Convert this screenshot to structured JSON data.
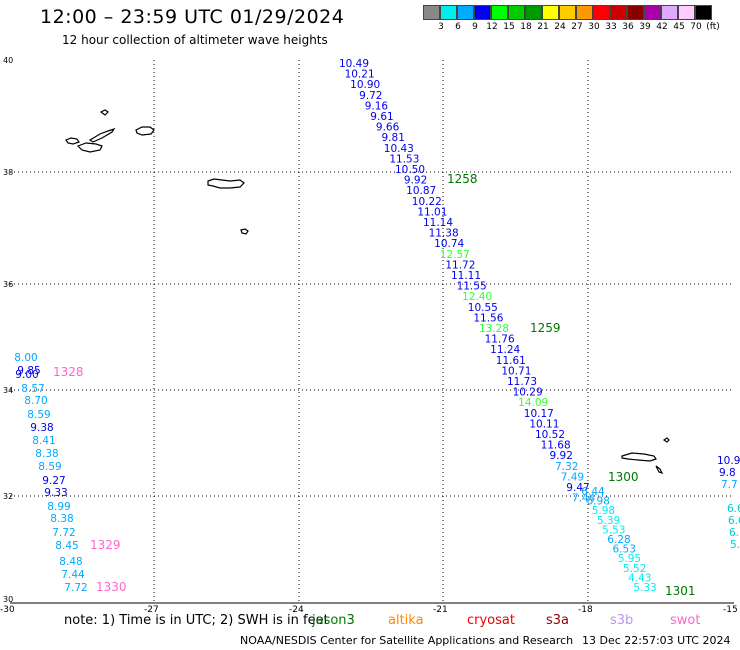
{
  "header": {
    "title": "12:00 – 23:59 UTC 01/29/2024",
    "subtitle": "12 hour collection of altimeter wave heights"
  },
  "legend": {
    "colors": [
      "#888888",
      "#00eeee",
      "#00aaff",
      "#0000ee",
      "#00ff00",
      "#00cc00",
      "#009900",
      "#ffff00",
      "#ffcc00",
      "#ff9900",
      "#ff0000",
      "#cc0000",
      "#880000",
      "#aa00aa",
      "#ddaaff",
      "#ffccff",
      "#000000"
    ],
    "labels": [
      "3",
      "6",
      "9",
      "12",
      "15",
      "18",
      "21",
      "24",
      "27",
      "30",
      "33",
      "36",
      "39",
      "42",
      "45",
      "70"
    ],
    "unit": "(ft)"
  },
  "axes": {
    "lat_labels": [
      "40",
      "38",
      "36",
      "34",
      "32",
      "30"
    ],
    "lon_labels": [
      "-30",
      "-27",
      "-24",
      "-21",
      "-18",
      "-15"
    ]
  },
  "tracks": {
    "pass_a": [
      "10.49",
      "10.21",
      "10.90",
      "9.72",
      "9.16",
      "9.61",
      "9.66",
      "9.81",
      "10.43",
      "11.53",
      "10.50",
      "9.92",
      "10.87",
      "10.22",
      "11.01",
      "11.14",
      "11.38",
      "10.74",
      "12.57",
      "11.72",
      "11.11",
      "11.55",
      "12.40",
      "10.55",
      "11.56",
      "13.28",
      "11.76",
      "11.24",
      "11.61",
      "10.71",
      "11.73",
      "10.29",
      "14.09",
      "10.17",
      "10.11",
      "10.52",
      "11.68",
      "9.92",
      "7.32",
      "7.49",
      "9.47",
      "7.44"
    ],
    "pass_b": [
      "6.44",
      "6.98",
      "5.98",
      "5.39",
      "5.53",
      "6.28",
      "6.53",
      "5.95",
      "5.52",
      "4.43",
      "5.33"
    ],
    "pass_c": [
      "8.00",
      "9.85",
      "9.00",
      "8.57",
      "8.70",
      "8.59",
      "9.38",
      "8.41",
      "8.38",
      "8.59",
      "9.27",
      "9.33",
      "8.99",
      "8.38",
      "7.72",
      "8.45",
      "8.48",
      "7.44",
      "7.72"
    ],
    "pass_d": [
      "10.9",
      "9.8",
      "7.7"
    ],
    "pass_e": [
      "6.6",
      "6.6",
      "6.",
      "5."
    ]
  },
  "times": {
    "t1258": "1258",
    "t1259": "1259",
    "t1300": "1300",
    "t1301": "1301",
    "t1328": "1328",
    "t1329": "1329",
    "t1330": "1330"
  },
  "footer": {
    "note": "note:  1) Time is in UTC;  2) SWH is in feet",
    "missions": [
      {
        "name": "jason3",
        "color": "#007700"
      },
      {
        "name": "altika",
        "color": "#ff8800"
      },
      {
        "name": "cryosat",
        "color": "#ee0000"
      },
      {
        "name": "s3a",
        "color": "#990000"
      },
      {
        "name": "s3b",
        "color": "#bb99ee"
      },
      {
        "name": "swot",
        "color": "#ff66cc"
      }
    ],
    "credit": "NOAA/NESDIS Center for Satellite Applications and Research",
    "generated": "13 Dec 22:57:03 UTC 2024"
  }
}
